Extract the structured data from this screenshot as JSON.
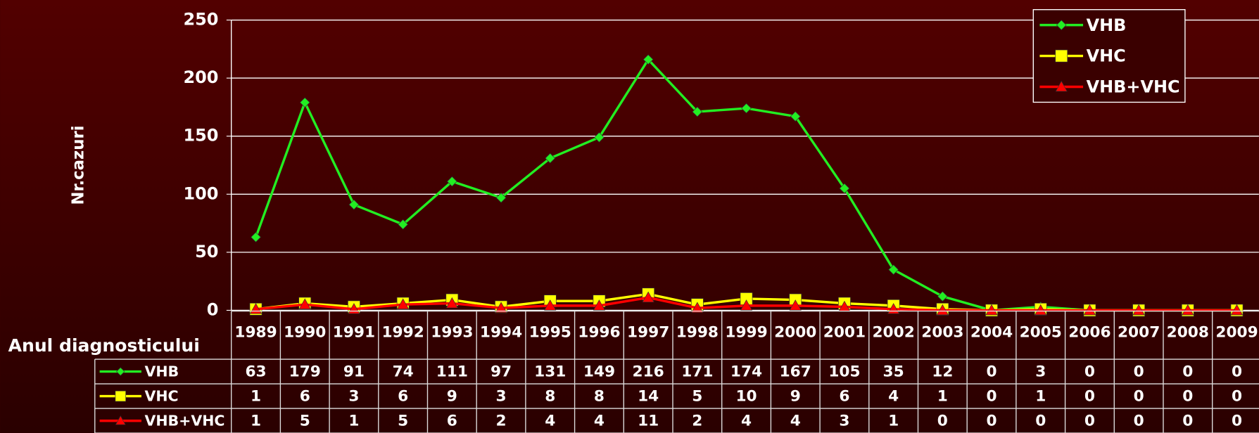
{
  "chart_data": {
    "type": "line",
    "ylabel": "Nr.cazuri",
    "xlabel": "Anul diagnosticului",
    "categories": [
      "1989",
      "1990",
      "1991",
      "1992",
      "1993",
      "1994",
      "1995",
      "1996",
      "1997",
      "1998",
      "1999",
      "2000",
      "2001",
      "2002",
      "2003",
      "2004",
      "2005",
      "2006",
      "2007",
      "2008",
      "2009"
    ],
    "series": [
      {
        "name": "VHB",
        "color": "#22ee22",
        "marker": "diamond",
        "values": [
          63,
          179,
          91,
          74,
          111,
          97,
          131,
          149,
          216,
          171,
          174,
          167,
          105,
          35,
          12,
          0,
          3,
          0,
          0,
          0,
          0
        ]
      },
      {
        "name": "VHC",
        "color": "#ffff00",
        "marker": "square",
        "values": [
          1,
          6,
          3,
          6,
          9,
          3,
          8,
          8,
          14,
          5,
          10,
          9,
          6,
          4,
          1,
          0,
          1,
          0,
          0,
          0,
          0
        ]
      },
      {
        "name": "VHB+VHC",
        "color": "#ff0000",
        "marker": "triangle",
        "values": [
          1,
          5,
          1,
          5,
          6,
          2,
          4,
          4,
          11,
          2,
          4,
          4,
          3,
          1,
          0,
          0,
          0,
          0,
          0,
          0,
          0
        ]
      }
    ],
    "ylim": [
      0,
      250
    ],
    "yticks": [
      0,
      50,
      100,
      150,
      200,
      250
    ],
    "grid": true,
    "legend": "top-right"
  }
}
